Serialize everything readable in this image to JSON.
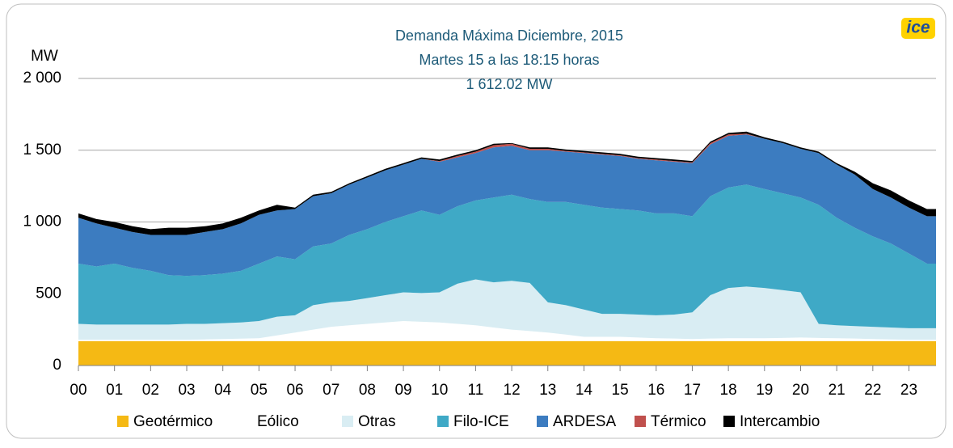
{
  "chart_data": {
    "type": "stacked_area",
    "title": [
      "Demanda Máxima Diciembre, 2015",
      "Martes 15 a las 18:15 horas",
      "1 612.02 MW"
    ],
    "logo": "ice",
    "ylabel": "MW",
    "x": [
      0,
      0.5,
      1,
      1.5,
      2,
      2.5,
      3,
      3.5,
      4,
      4.5,
      5,
      5.5,
      6,
      6.5,
      7,
      7.5,
      8,
      8.5,
      9,
      9.5,
      10,
      10.5,
      11,
      11.5,
      12,
      12.5,
      13,
      13.5,
      14,
      14.5,
      15,
      15.5,
      16,
      16.5,
      17,
      17.5,
      18,
      18.5,
      19,
      19.5,
      20,
      20.5,
      21,
      21.5,
      22,
      22.5,
      23,
      23.5
    ],
    "xlim": [
      0,
      23.75
    ],
    "xticks": [
      {
        "value": 0,
        "label": "00"
      },
      {
        "value": 1,
        "label": "01"
      },
      {
        "value": 2,
        "label": "02"
      },
      {
        "value": 3,
        "label": "03"
      },
      {
        "value": 4,
        "label": "04"
      },
      {
        "value": 5,
        "label": "05"
      },
      {
        "value": 6,
        "label": "06"
      },
      {
        "value": 7,
        "label": "07"
      },
      {
        "value": 8,
        "label": "08"
      },
      {
        "value": 9,
        "label": "09"
      },
      10,
      11,
      12,
      13,
      14,
      15,
      16,
      17,
      18,
      19,
      20,
      21,
      22,
      23
    ],
    "ylim": [
      0,
      2000
    ],
    "yticks": [
      0,
      500,
      {
        "value": 1000,
        "label": "1 000"
      },
      {
        "value": 1500,
        "label": "1 500"
      },
      {
        "value": 2000,
        "label": "2 000"
      }
    ],
    "grid": true,
    "legend": "bottom",
    "series": [
      {
        "name": "Geotérmico",
        "color": "#f5b914",
        "values": [
          170,
          170,
          170,
          170,
          170,
          170,
          170,
          170,
          170,
          170,
          170,
          170,
          170,
          170,
          170,
          170,
          170,
          170,
          170,
          170,
          170,
          170,
          170,
          170,
          170,
          170,
          170,
          170,
          170,
          170,
          170,
          170,
          170,
          170,
          170,
          170,
          170,
          170,
          170,
          170,
          170,
          170,
          170,
          170,
          170,
          170,
          170,
          170
        ]
      },
      {
        "name": "Eólico",
        "color": "#ffffff",
        "values": [
          10,
          10,
          10,
          10,
          10,
          10,
          10,
          12,
          15,
          17,
          20,
          40,
          60,
          80,
          100,
          110,
          120,
          130,
          140,
          135,
          130,
          120,
          110,
          95,
          80,
          70,
          60,
          45,
          30,
          30,
          30,
          25,
          20,
          18,
          15,
          18,
          20,
          20,
          20,
          22,
          25,
          22,
          20,
          18,
          15,
          12,
          10,
          10
        ]
      },
      {
        "name": "Otras",
        "color": "#d9edf3",
        "values": [
          110,
          105,
          105,
          105,
          105,
          105,
          110,
          108,
          110,
          113,
          120,
          130,
          120,
          170,
          170,
          170,
          180,
          190,
          200,
          200,
          210,
          280,
          320,
          315,
          340,
          335,
          210,
          205,
          190,
          160,
          160,
          160,
          160,
          167,
          185,
          302,
          350,
          360,
          350,
          333,
          315,
          98,
          90,
          87,
          85,
          83,
          80,
          80
        ]
      },
      {
        "name": "Filo-ICE",
        "color": "#3fa9c6",
        "values": [
          420,
          405,
          425,
          395,
          375,
          345,
          335,
          340,
          345,
          360,
          400,
          420,
          390,
          410,
          410,
          460,
          480,
          510,
          530,
          575,
          540,
          540,
          550,
          590,
          600,
          585,
          700,
          720,
          730,
          740,
          730,
          725,
          710,
          705,
          670,
          690,
          700,
          710,
          690,
          675,
          660,
          830,
          750,
          685,
          630,
          585,
          520,
          450
        ]
      },
      {
        "name": "ARDESA",
        "color": "#3c7cc0",
        "values": [
          320,
          300,
          250,
          250,
          250,
          280,
          285,
          300,
          310,
          330,
          340,
          320,
          350,
          350,
          350,
          350,
          360,
          360,
          360,
          360,
          370,
          340,
          330,
          350,
          340,
          340,
          360,
          350,
          360,
          370,
          370,
          360,
          370,
          360,
          370,
          360,
          360,
          350,
          350,
          350,
          340,
          360,
          370,
          370,
          330,
          320,
          320,
          330
        ]
      },
      {
        "name": "Térmico",
        "color": "#c0504d",
        "values": [
          0,
          0,
          0,
          0,
          0,
          0,
          0,
          0,
          0,
          0,
          0,
          0,
          0,
          0,
          0,
          0,
          0,
          0,
          0,
          0,
          5,
          10,
          10,
          15,
          15,
          10,
          10,
          5,
          5,
          5,
          5,
          5,
          5,
          5,
          5,
          10,
          10,
          5,
          0,
          0,
          0,
          0,
          0,
          0,
          0,
          0,
          0,
          0
        ]
      },
      {
        "name": "Intercambio",
        "color": "#000000",
        "values": [
          30,
          30,
          40,
          40,
          40,
          50,
          50,
          40,
          40,
          40,
          30,
          40,
          10,
          10,
          10,
          10,
          10,
          10,
          10,
          10,
          10,
          10,
          10,
          10,
          5,
          10,
          10,
          10,
          10,
          10,
          10,
          10,
          10,
          10,
          10,
          10,
          10,
          15,
          10,
          10,
          10,
          10,
          10,
          20,
          40,
          50,
          50,
          50
        ]
      }
    ]
  }
}
